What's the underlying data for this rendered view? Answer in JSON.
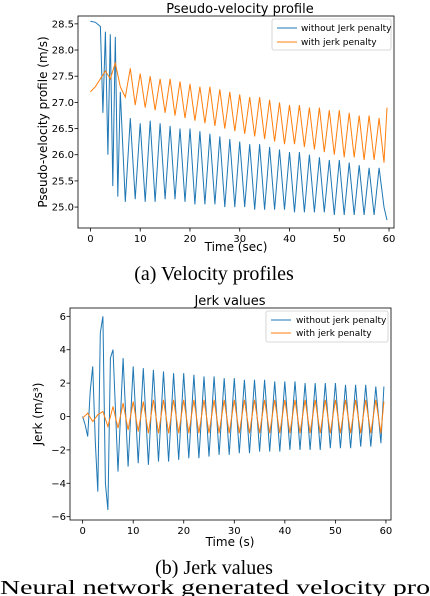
{
  "colors": {
    "blue": "#1f77b4",
    "orange": "#ff7f0e"
  },
  "charts": [
    {
      "type": "line",
      "title": "Pseudo-velocity profile",
      "xlabel": "Time (sec)",
      "ylabel": "Pseudo-velocity profile (m/s)",
      "caption": "(a) Velocity profiles",
      "xlim": [
        -2.5,
        61
      ],
      "ylim": [
        24.6,
        28.65
      ],
      "xticks": [
        "0",
        "10",
        "20",
        "30",
        "40",
        "50",
        "60"
      ],
      "xtick_values": [
        0,
        10,
        20,
        30,
        40,
        50,
        60
      ],
      "yticks": [
        "25.0",
        "25.5",
        "26.0",
        "26.5",
        "27.0",
        "27.5",
        "28.0",
        "28.5"
      ],
      "ytick_values": [
        25.0,
        25.5,
        26.0,
        26.5,
        27.0,
        27.5,
        28.0,
        28.5
      ],
      "legend": {
        "placement": "top-right",
        "entries": [
          "without Jerk penalty",
          "with jerk penalty"
        ]
      },
      "grid": false
    },
    {
      "type": "line",
      "title": "Jerk values",
      "xlabel": "Time (s)",
      "ylabel": "Jerk (m/s³)",
      "caption": "(b) Jerk values",
      "xlim": [
        -2.5,
        61
      ],
      "ylim": [
        -6.2,
        6.5
      ],
      "xticks": [
        "0",
        "10",
        "20",
        "30",
        "40",
        "50",
        "60"
      ],
      "xtick_values": [
        0,
        10,
        20,
        30,
        40,
        50,
        60
      ],
      "yticks": [
        "−6",
        "−4",
        "−2",
        "0",
        "2",
        "4",
        "6"
      ],
      "ytick_values": [
        -6,
        -4,
        -2,
        0,
        2,
        4,
        6
      ],
      "legend": {
        "placement": "top-right",
        "entries": [
          "without jerk penalty",
          "with jerk penalty"
        ]
      },
      "grid": false
    }
  ],
  "chart_data": [
    {
      "type": "line",
      "title": "Pseudo-velocity profile",
      "xlabel": "Time (sec)",
      "ylabel": "Pseudo-velocity profile (m/s)",
      "series": [
        {
          "name": "without Jerk penalty",
          "color": "#1f77b4",
          "x": [
            0,
            1,
            2,
            2.5,
            3,
            3.5,
            4,
            4.5,
            5,
            5.5,
            6,
            7,
            8,
            9,
            10,
            11,
            12,
            13,
            14,
            15,
            16,
            17,
            18,
            19,
            20,
            21,
            22,
            23,
            24,
            25,
            26,
            27,
            28,
            29,
            30,
            31,
            32,
            33,
            34,
            35,
            36,
            37,
            38,
            39,
            40,
            41,
            42,
            43,
            44,
            45,
            46,
            47,
            48,
            49,
            50,
            51,
            52,
            53,
            54,
            55,
            56,
            57,
            58,
            59,
            59.6
          ],
          "y": [
            28.55,
            28.53,
            28.45,
            26.8,
            28.35,
            26.0,
            28.3,
            25.4,
            28.25,
            25.2,
            27.2,
            25.1,
            26.7,
            25.15,
            26.6,
            25.1,
            26.65,
            25.1,
            26.6,
            25.15,
            26.55,
            25.15,
            26.5,
            25.1,
            26.5,
            25.05,
            26.45,
            25.05,
            26.4,
            25.05,
            26.35,
            25.0,
            26.3,
            25.0,
            26.25,
            25.0,
            26.2,
            24.95,
            26.2,
            24.95,
            26.15,
            24.95,
            26.1,
            24.95,
            26.05,
            24.9,
            26.05,
            24.9,
            26.0,
            24.9,
            25.95,
            24.9,
            25.9,
            24.85,
            25.9,
            24.85,
            25.85,
            24.85,
            25.8,
            24.85,
            25.75,
            24.85,
            25.75,
            25.0,
            24.75
          ]
        },
        {
          "name": "with jerk penalty",
          "color": "#ff7f0e",
          "x": [
            0,
            1,
            2,
            3,
            4,
            5,
            6,
            7,
            8,
            9,
            10,
            11,
            12,
            13,
            14,
            15,
            16,
            17,
            18,
            19,
            20,
            21,
            22,
            23,
            24,
            25,
            26,
            27,
            28,
            29,
            30,
            31,
            32,
            33,
            34,
            35,
            36,
            37,
            38,
            39,
            40,
            41,
            42,
            43,
            44,
            45,
            46,
            47,
            48,
            49,
            50,
            51,
            52,
            53,
            54,
            55,
            56,
            57,
            58,
            59,
            59.6
          ],
          "y": [
            27.2,
            27.3,
            27.45,
            27.6,
            27.45,
            27.75,
            27.3,
            27.1,
            27.65,
            26.95,
            27.55,
            26.9,
            27.5,
            26.85,
            27.45,
            26.8,
            27.45,
            26.75,
            27.4,
            26.7,
            27.35,
            26.65,
            27.3,
            26.6,
            27.3,
            26.55,
            27.25,
            26.5,
            27.2,
            26.45,
            27.15,
            26.4,
            27.1,
            26.35,
            27.1,
            26.3,
            27.05,
            26.25,
            27.0,
            26.2,
            26.95,
            26.2,
            26.95,
            26.15,
            26.9,
            26.1,
            26.9,
            26.05,
            26.85,
            26.0,
            26.85,
            25.95,
            26.8,
            25.95,
            26.75,
            25.9,
            26.75,
            25.9,
            26.7,
            25.85,
            26.9
          ]
        }
      ]
    },
    {
      "type": "line",
      "title": "Jerk values",
      "xlabel": "Time (s)",
      "ylabel": "Jerk (m/s³)",
      "series": [
        {
          "name": "without jerk penalty",
          "color": "#1f77b4",
          "x": [
            0,
            0.5,
            1,
            1.5,
            2,
            2.5,
            3,
            3.5,
            4,
            4.5,
            5,
            5.5,
            6,
            7,
            8,
            9,
            10,
            11,
            12,
            13,
            14,
            15,
            16,
            17,
            18,
            19,
            20,
            21,
            22,
            23,
            24,
            25,
            26,
            27,
            28,
            29,
            30,
            31,
            32,
            33,
            34,
            35,
            36,
            37,
            38,
            39,
            40,
            41,
            42,
            43,
            44,
            45,
            46,
            47,
            48,
            49,
            50,
            51,
            52,
            53,
            54,
            55,
            56,
            57,
            58,
            59,
            59.6
          ],
          "y": [
            0,
            -0.5,
            -1.2,
            1.5,
            3.0,
            -1.5,
            -4.5,
            5.0,
            6.0,
            -4.0,
            -5.6,
            3.5,
            4.0,
            -3.3,
            3.5,
            -3.0,
            3.0,
            -2.8,
            2.9,
            -2.9,
            2.8,
            -2.7,
            2.7,
            -2.7,
            2.6,
            -2.6,
            2.6,
            -2.5,
            2.5,
            -2.5,
            2.4,
            -2.4,
            2.4,
            -2.3,
            2.3,
            -2.3,
            2.3,
            -2.2,
            2.2,
            -2.2,
            2.2,
            -2.1,
            2.2,
            -2.1,
            2.1,
            -2.1,
            2.1,
            -2.0,
            2.1,
            -2.0,
            2.0,
            -2.0,
            2.0,
            -2.0,
            2.0,
            -1.9,
            2.0,
            -1.9,
            1.9,
            -1.9,
            1.9,
            -1.8,
            1.9,
            -1.8,
            1.8,
            -1.6,
            1.8
          ]
        },
        {
          "name": "with jerk penalty",
          "color": "#ff7f0e",
          "x": [
            0,
            1,
            2,
            3,
            4,
            5,
            6,
            7,
            8,
            9,
            10,
            11,
            12,
            13,
            14,
            15,
            16,
            17,
            18,
            19,
            20,
            21,
            22,
            23,
            24,
            25,
            26,
            27,
            28,
            29,
            30,
            31,
            32,
            33,
            34,
            35,
            36,
            37,
            38,
            39,
            40,
            41,
            42,
            43,
            44,
            45,
            46,
            47,
            48,
            49,
            50,
            51,
            52,
            53,
            54,
            55,
            56,
            57,
            58,
            59,
            59.6
          ],
          "y": [
            -0.1,
            0.2,
            -0.3,
            0.1,
            0.3,
            -0.6,
            0.6,
            -0.7,
            0.8,
            -0.8,
            0.9,
            -0.9,
            0.9,
            -1.0,
            1.0,
            -1.0,
            1.0,
            -1.0,
            1.0,
            -1.0,
            1.0,
            -1.0,
            1.0,
            -1.0,
            1.0,
            -1.0,
            1.0,
            -1.0,
            1.0,
            -1.0,
            1.0,
            -1.0,
            1.0,
            -1.0,
            1.0,
            -1.0,
            1.0,
            -1.0,
            1.0,
            -1.0,
            1.0,
            -1.0,
            1.0,
            -1.0,
            1.0,
            -1.0,
            1.0,
            -1.0,
            1.0,
            -1.0,
            1.0,
            -1.0,
            1.0,
            -1.0,
            1.0,
            -1.0,
            1.0,
            -1.0,
            1.0,
            -1.0,
            0.9
          ]
        }
      ]
    }
  ],
  "bottom_caption": "Neural network generated velocity pro"
}
